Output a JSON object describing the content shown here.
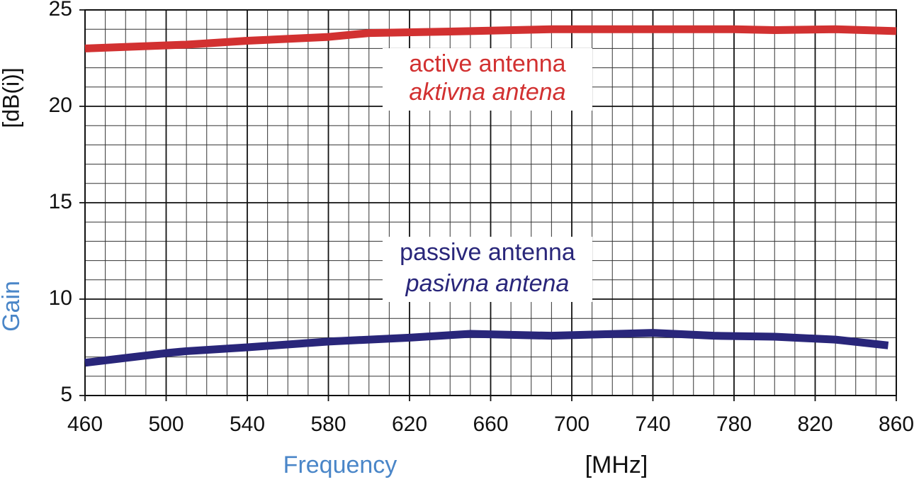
{
  "chart_data": {
    "type": "line",
    "x_label": "Frequency",
    "x_unit": "[MHz]",
    "y_label": "Gain",
    "y_unit": "[dB(i)]",
    "xlim": [
      460,
      860
    ],
    "xticks": [
      460,
      500,
      540,
      580,
      620,
      660,
      700,
      740,
      780,
      820,
      860
    ],
    "ylim": [
      5,
      25
    ],
    "yticks": [
      5,
      10,
      15,
      20,
      25
    ],
    "grid": true,
    "minor_grid": {
      "x": 4,
      "y": 5
    },
    "series": [
      {
        "name": "active antenna",
        "name_alt": "aktivna antena",
        "color": "#d23131",
        "x": [
          460,
          510,
          540,
          580,
          600,
          650,
          690,
          740,
          780,
          800,
          830,
          860
        ],
        "values": [
          23.0,
          23.2,
          23.4,
          23.6,
          23.8,
          23.9,
          24.0,
          24.0,
          24.0,
          23.95,
          24.0,
          23.9
        ]
      },
      {
        "name": "passive antenna",
        "name_alt": "pasivna antena",
        "color": "#29267a",
        "x": [
          460,
          500,
          510,
          540,
          580,
          620,
          650,
          690,
          740,
          770,
          800,
          830,
          856
        ],
        "values": [
          6.7,
          7.2,
          7.3,
          7.5,
          7.8,
          8.0,
          8.2,
          8.1,
          8.25,
          8.1,
          8.05,
          7.9,
          7.6
        ]
      }
    ]
  }
}
